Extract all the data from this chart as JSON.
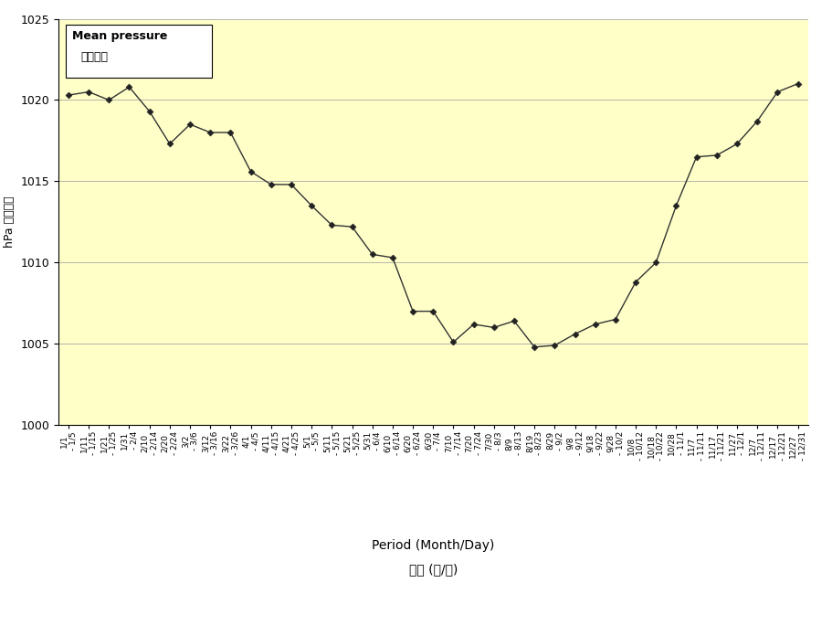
{
  "xlabel_en": "Period (Month/Day)",
  "xlabel_zh": "期間 (月/日)",
  "legend_en": "Mean pressure",
  "legend_zh": "平均氣壓",
  "ylim": [
    1000,
    1025
  ],
  "background_color": "#ffffc8",
  "fig_background": "#ffffff",
  "line_color": "#333333",
  "marker_color": "#222222",
  "categories": [
    "1/1\n- 1/5",
    "1/11\n- 1/15",
    "1/21\n- 1/25",
    "1/31\n- 2/4",
    "2/10\n- 2/14",
    "2/20\n- 2/24",
    "3/2\n- 3/6",
    "3/12\n- 3/16",
    "3/22\n- 3/26",
    "4/1\n- 4/5",
    "4/11\n- 4/15",
    "4/21\n- 4/25",
    "5/1\n- 5/5",
    "5/11\n- 5/15",
    "5/21\n- 5/25",
    "5/31\n- 6/4",
    "6/10\n- 6/14",
    "6/20\n- 6/24",
    "6/30\n- 7/4",
    "7/10\n- 7/14",
    "7/20\n- 7/24",
    "7/30\n- 8/3",
    "8/9\n- 8/13",
    "8/19\n- 8/23",
    "8/29\n- 9/2",
    "9/8\n- 9/12",
    "9/18\n- 9/22",
    "9/28\n- 10/2",
    "10/8\n- 10/12",
    "10/18\n- 10/22",
    "10/28\n- 11/1",
    "11/7\n- 11/11",
    "11/17\n- 11/21",
    "11/27\n- 12/1",
    "12/7\n- 12/11",
    "12/17\n- 12/21",
    "12/27\n- 12/31"
  ],
  "values": [
    1020.3,
    1020.5,
    1020.0,
    1020.8,
    1019.3,
    1017.3,
    1018.5,
    1018.0,
    1018.0,
    1015.6,
    1014.8,
    1014.8,
    1013.5,
    1012.3,
    1012.2,
    1010.5,
    1010.3,
    1007.0,
    1007.0,
    1005.1,
    1006.2,
    1006.0,
    1006.4,
    1004.8,
    1004.9,
    1005.6,
    1006.2,
    1006.5,
    1008.8,
    1010.0,
    1013.5,
    1016.5,
    1016.6,
    1017.3,
    1018.7,
    1020.5,
    1021.0
  ],
  "yticks": [
    1000,
    1005,
    1010,
    1015,
    1020,
    1025
  ]
}
